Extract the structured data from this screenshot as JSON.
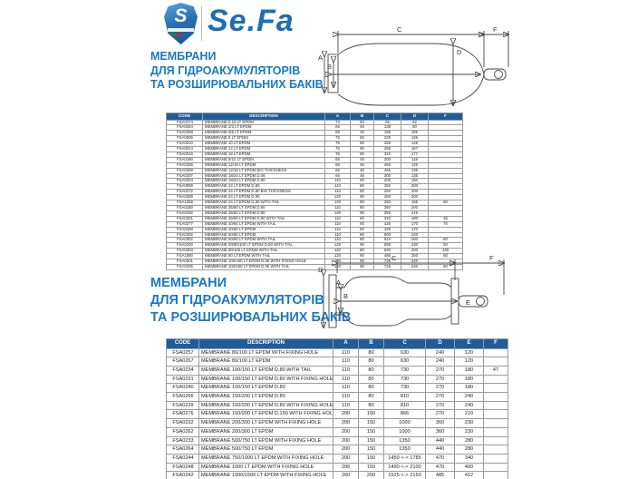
{
  "logo": {
    "brand": "Se.Fa",
    "shield_letter": "S"
  },
  "accent_colors": {
    "heading_blue": "#1b79c2",
    "table_header_blue": "#1f5d99",
    "logo_blue": "#1d6db6"
  },
  "section1": {
    "heading": [
      "МЕМБРАНИ",
      "ДЛЯ ГІДРОАКУМУЛЯТОРІВ",
      "ТА РОЗШИРЮВАЛЬНИХ БАКІВ"
    ],
    "diagram_labels": {
      "a": "A",
      "b": "B",
      "c": "C",
      "d": "D",
      "f": "F"
    },
    "table": {
      "columns": [
        "CODE",
        "DESCRIPTION",
        "A",
        "B",
        "C",
        "D",
        "F"
      ],
      "rows": [
        [
          "FSA0274",
          "MEMBRANE 0,16 LT EPDM",
          "73",
          "60",
          "65",
          "62",
          ""
        ],
        [
          "FSA0264",
          "MEMBRANE 2/3 LT EPDM",
          "65",
          "45",
          "135",
          "80",
          ""
        ],
        [
          "FSA0258",
          "MEMBRANE 5/6 LT EPDM",
          "65",
          "45",
          "155",
          "105",
          ""
        ],
        [
          "FSA0006",
          "MEMBRANE 8 LT EPDM",
          "75",
          "60",
          "225",
          "126",
          ""
        ],
        [
          "FSA0010",
          "MEMBRANE 10 LT EPDM",
          "75",
          "60",
          "255",
          "145",
          ""
        ],
        [
          "FSA0014",
          "MEMBRANE 14 LT EPDM",
          "75",
          "60",
          "285",
          "167",
          ""
        ],
        [
          "FSA0018",
          "MEMBRANE 18 LT EPDM",
          "75",
          "60",
          "310",
          "177",
          ""
        ],
        [
          "FSA0190",
          "MEMBRANE 8/12 LT EPDM",
          "65",
          "45",
          "200",
          "115",
          ""
        ],
        [
          "FSA0265",
          "MEMBRANE 12/18 LT EPDM",
          "65",
          "45",
          "265",
          "135",
          ""
        ],
        [
          "FSA0269",
          "MEMBRANE 12/18 LT EPDM BIG THICKNESS",
          "65",
          "45",
          "265",
          "135",
          ""
        ],
        [
          "FSA0207",
          "MEMBRANE 18/24 LT EPDM D.46",
          "65",
          "45",
          "300",
          "135",
          ""
        ],
        [
          "FSA0204",
          "MEMBRANE 18/24 LT EPDM D.80",
          "110",
          "80",
          "200",
          "150",
          ""
        ],
        [
          "FSA0099",
          "MEMBRANE 24 LT EPDM D.80",
          "110",
          "80",
          "250",
          "200",
          ""
        ],
        [
          "FSA0272",
          "MEMBRANE 24 LT EPDM D.80 BIG THICKNESS",
          "110",
          "80",
          "250",
          "200",
          ""
        ],
        [
          "FSA0259",
          "MEMBRANE 24 LT EPDM D.90",
          "120",
          "90",
          "250",
          "200",
          ""
        ],
        [
          "FSA1259",
          "MEMBRANE 24 LT EPDM D.90 WITH TAIL",
          "120",
          "90",
          "260",
          "165",
          "80"
        ],
        [
          "FSA0180",
          "MEMBRANE 35/50 LT EPDM D.80",
          "110",
          "80",
          "350",
          "200",
          ""
        ],
        [
          "FSA0182",
          "MEMBRANE 35/50 LT EPDM D.90",
          "120",
          "90",
          "350",
          "215",
          ""
        ],
        [
          "FSA0301",
          "MEMBRANE 35/50 LT EPDM D.80 WITH TAIL",
          "110",
          "80",
          "310",
          "180",
          "45"
        ],
        [
          "FSA0277",
          "MEMBRANE 40/60 LT EPDM WITH TAIL",
          "110",
          "80",
          "425",
          "170",
          "70"
        ],
        [
          "FSA0290",
          "MEMBRANE 40/60 LT EPDM",
          "110",
          "80",
          "425",
          "170",
          ""
        ],
        [
          "FSA0292",
          "MEMBRANE 50/80 LT EPDM",
          "110",
          "80",
          "500",
          "220",
          ""
        ],
        [
          "FSA0302",
          "MEMBRANE 50/80 LT EPDM WITH TAIL",
          "110",
          "80",
          "510",
          "200",
          "60"
        ],
        [
          "FSA0200",
          "MEMBRANE 60/80/100 LT EPDM D.90 WITH TAIL",
          "120",
          "90",
          "595",
          "230",
          "50"
        ],
        [
          "FSA0303",
          "MEMBRANE 80/100 LT EPDM WITH TAIL",
          "110",
          "80",
          "640",
          "200",
          "130"
        ],
        [
          "FSA1080",
          "MEMBRANE 80 LT EPDM WITH TAIL",
          "120",
          "90",
          "485",
          "250",
          "50"
        ],
        [
          "FSA0201",
          "MEMBRANE 100/150 LT EPDM D.90 WITH FIXING HOLE",
          "120",
          "90",
          "725",
          "240",
          ""
        ],
        [
          "FSA0205",
          "MEMBRANE 100/150 LT EPDM D.90 WITH TAIL",
          "120",
          "90",
          "725",
          "240",
          "60"
        ]
      ]
    }
  },
  "section2": {
    "heading": [
      "МЕМБРАНИ",
      "ДЛЯ ГІДРОАКУМУЛЯТОРІВ",
      "ТА РОЗШИРЮВАЛЬНИХ БАКІВ"
    ],
    "diagram_labels": {
      "a": "A",
      "b": "B",
      "c": "C",
      "d": "D",
      "e": "E",
      "f": "F"
    },
    "table": {
      "columns": [
        "CODE",
        "DESCRIPTION",
        "A",
        "B",
        "C",
        "D",
        "E",
        "F"
      ],
      "rows": [
        [
          "FSA0257",
          "MEMBRANE 80/100 LT EPDM WITH FIXING HOLE",
          "110",
          "80",
          "630",
          "240",
          "120",
          ""
        ],
        [
          "FSA0267",
          "MEMBRANE 80/100 LT EPDM",
          "110",
          "80",
          "630",
          "240",
          "120",
          ""
        ],
        [
          "FSA0234",
          "MEMBRANE 100/150 LT EPDM D.80 WITH TAIL",
          "110",
          "80",
          "730",
          "270",
          "180",
          "47"
        ],
        [
          "FSA0231",
          "MEMBRANE 100/150 LT EPDM D.80 WITH FIXING HOLE",
          "110",
          "80",
          "730",
          "270",
          "180",
          ""
        ],
        [
          "FSA0240",
          "MEMBRANE 100/150 LT EPDM D.80",
          "110",
          "80",
          "730",
          "270",
          "180",
          ""
        ],
        [
          "FSA0266",
          "MEMBRANE 150/200 LT EPDM D.80",
          "110",
          "80",
          "810",
          "270",
          "240",
          ""
        ],
        [
          "FSA0239",
          "MEMBRANE 150/200 LT EPDM D.80 WITH FIXING HOLE",
          "110",
          "80",
          "810",
          "270",
          "240",
          ""
        ],
        [
          "FSA0276",
          "MEMBRANE 150/200 LT EPDM D.150 WITH FIXING HOLE",
          "200",
          "150",
          "866",
          "270",
          "210",
          ""
        ],
        [
          "FSA0232",
          "MEMBRANE 200/300 LT EPDM WITH FIXING HOLE",
          "200",
          "150",
          "1000",
          "360",
          "230",
          ""
        ],
        [
          "FSA0262",
          "MEMBRANE 200/300 LT EPDM",
          "200",
          "150",
          "1000",
          "360",
          "230",
          ""
        ],
        [
          "FSA0233",
          "MEMBRANE 500/750 LT EPDM WITH FIXING HOLE",
          "200",
          "150",
          "1350",
          "440",
          "280",
          ""
        ],
        [
          "FSA0264",
          "MEMBRANE 500/750 LT EPDM",
          "200",
          "150",
          "1350",
          "440",
          "280",
          ""
        ],
        [
          "FSA0244",
          "MEMBRANE 750/1000 LT EPDM WITH FIXING HOLE",
          "200",
          "150",
          "1450 <-> 1785",
          "470",
          "340",
          ""
        ],
        [
          "FSA0248",
          "MEMBRANE 1000 LT EPDM WITH FIXING HOLE",
          "200",
          "150",
          "1490 <-> 2100",
          "470",
          "400",
          ""
        ],
        [
          "FSA0242",
          "MEMBRANE 1000/1500 LT EPDM WITH FIXING HOLE",
          "260",
          "200",
          "1525 <-> 2150",
          "485",
          "412",
          ""
        ]
      ]
    }
  }
}
